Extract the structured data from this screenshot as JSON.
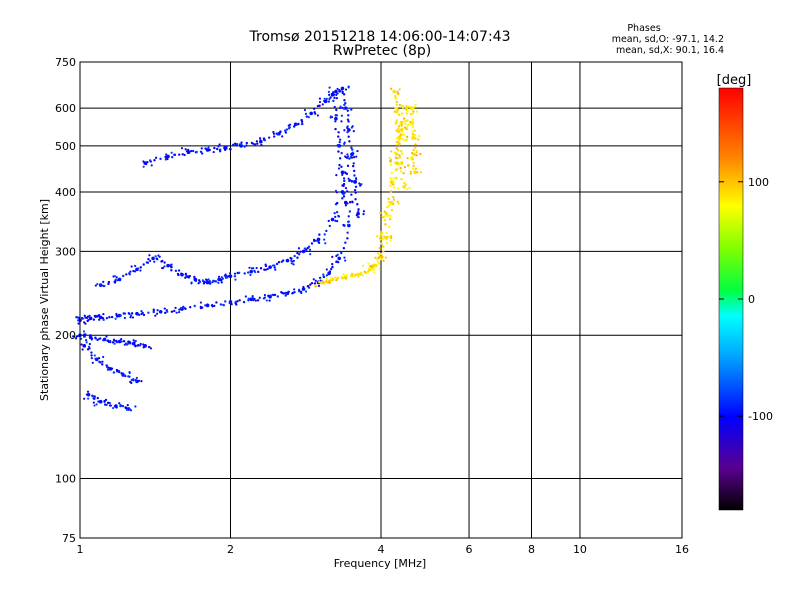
{
  "chart_data": {
    "type": "scatter",
    "title": "Tromsø 20151218 14:06:00-14:07:43",
    "subtitle": "RwPretec (8p)",
    "xlabel": "Frequency [MHz]",
    "ylabel": "Stationary phase Virtual Height [km]",
    "x_scale": "log",
    "y_scale": "log",
    "xlim": [
      1,
      16
    ],
    "ylim": [
      75,
      750
    ],
    "x_ticks": [
      1,
      2,
      4,
      6,
      8,
      10,
      16
    ],
    "y_ticks": [
      75,
      100,
      200,
      300,
      400,
      500,
      600,
      750
    ],
    "grid": true,
    "phases_box": {
      "heading": "Phases",
      "o_line": "mean, sd,O: -97.1, 14.2",
      "x_line": "mean, sd,X:  90.1, 16.4"
    },
    "colorbar": {
      "label": "[deg]",
      "range": [
        -180,
        180
      ],
      "ticks": [
        100,
        0,
        -100
      ],
      "colormap": "rainbow"
    },
    "series": [
      {
        "name": "O",
        "phase": -97.1,
        "traces": [
          {
            "x": [
              1.0,
              1.05,
              1.1,
              1.2,
              1.3,
              1.45,
              1.6,
              1.8,
              2.0,
              2.2,
              2.4,
              2.6,
              2.8,
              3.0,
              3.15,
              3.3,
              3.45,
              3.55
            ],
            "y": [
              215,
              217,
              218,
              220,
              222,
              224,
              227,
              231,
              235,
              238,
              241,
              245,
              250,
              258,
              270,
              290,
              340,
              420
            ]
          },
          {
            "x": [
              1.1,
              1.2,
              1.3,
              1.4,
              1.5,
              1.6,
              1.7,
              1.8,
              1.9,
              2.0,
              2.2,
              2.4,
              2.6,
              2.8,
              3.0,
              3.2,
              3.35,
              3.5
            ],
            "y": [
              255,
              262,
              275,
              290,
              280,
              268,
              262,
              258,
              262,
              266,
              272,
              278,
              287,
              300,
              318,
              350,
              400,
              480
            ]
          },
          {
            "x": [
              1.35,
              1.5,
              1.65,
              1.8,
              1.95,
              2.1,
              2.3,
              2.5,
              2.7,
              2.9,
              3.1,
              3.25
            ],
            "y": [
              460,
              475,
              485,
              490,
              495,
              500,
              510,
              530,
              555,
              585,
              620,
              650
            ]
          },
          {
            "x": [
              1.0,
              1.05,
              1.12,
              1.2,
              1.28,
              1.35
            ],
            "y": [
              200,
              198,
              196,
              194,
              192,
              190
            ]
          },
          {
            "x": [
              1.02,
              1.08,
              1.15,
              1.22,
              1.3
            ],
            "y": [
              190,
              178,
              170,
              165,
              160
            ]
          },
          {
            "x": [
              1.04,
              1.1,
              1.18,
              1.25
            ],
            "y": [
              150,
              145,
              142,
              140
            ]
          },
          {
            "x": [
              3.35,
              3.4,
              3.45,
              3.5,
              3.55,
              3.6
            ],
            "y": [
              660,
              600,
              540,
              480,
              420,
              360
            ]
          },
          {
            "x": [
              3.2,
              3.25,
              3.3,
              3.35,
              3.4
            ],
            "y": [
              640,
              570,
              500,
              440,
              380
            ]
          }
        ]
      },
      {
        "name": "X",
        "phase": 90.1,
        "traces": [
          {
            "x": [
              3.05,
              3.2,
              3.4,
              3.6,
              3.8,
              4.0,
              4.1,
              4.2,
              4.3,
              4.4
            ],
            "y": [
              258,
              262,
              265,
              268,
              275,
              290,
              320,
              380,
              460,
              560
            ]
          },
          {
            "x": [
              3.9,
              4.0,
              4.1,
              4.2,
              4.3,
              4.4,
              4.5
            ],
            "y": [
              280,
              320,
              360,
              420,
              480,
              540,
              600
            ]
          },
          {
            "x": [
              4.25,
              4.3,
              4.35,
              4.4,
              4.45
            ],
            "y": [
              650,
              590,
              520,
              460,
              410
            ]
          },
          {
            "x": [
              4.6,
              4.62,
              4.64,
              4.66,
              4.68
            ],
            "y": [
              600,
              560,
              520,
              480,
              440
            ]
          }
        ]
      }
    ]
  }
}
